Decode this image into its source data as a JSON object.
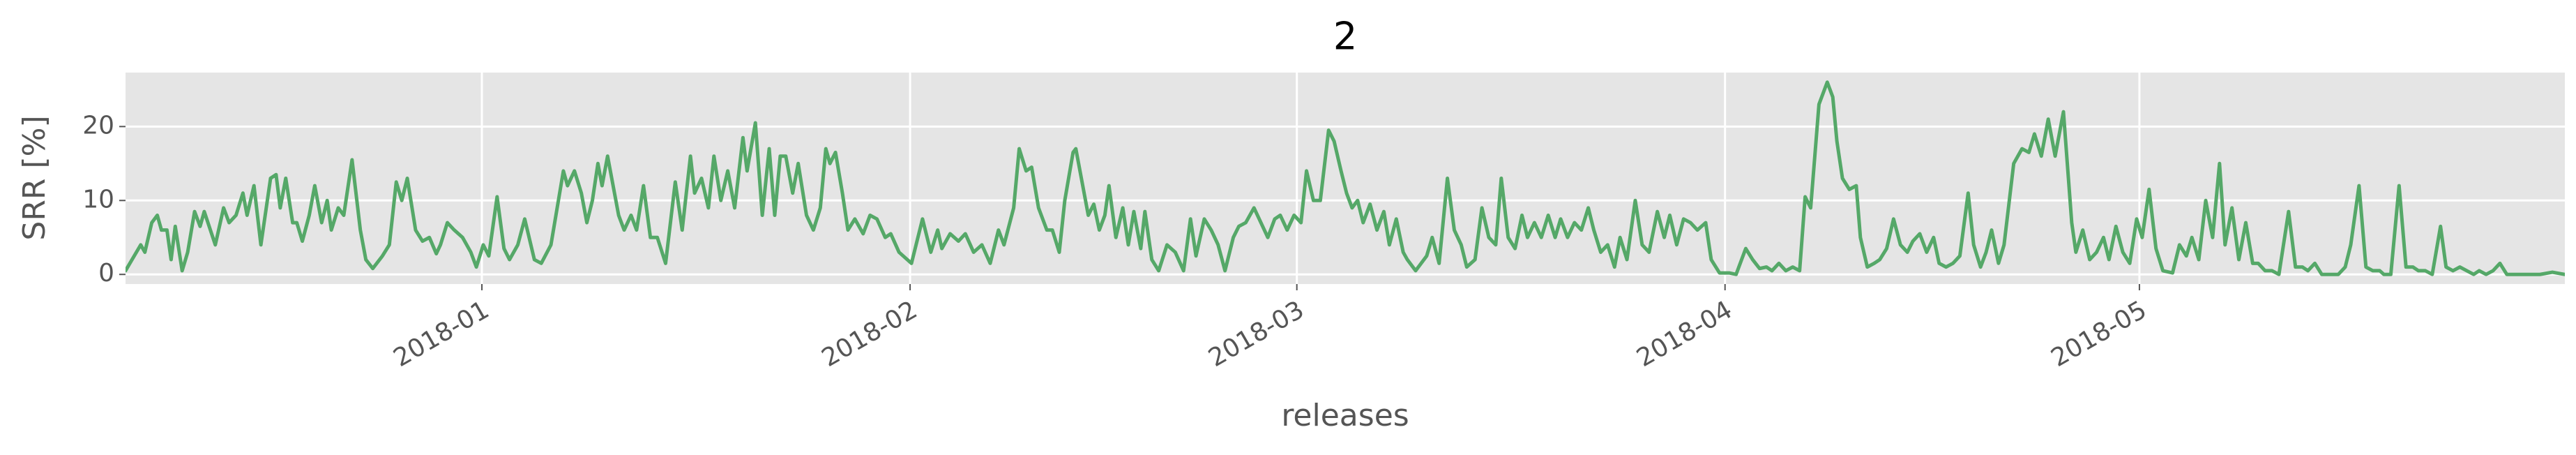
{
  "chart_data": {
    "type": "line",
    "title": "2",
    "x_label": "releases",
    "y_label": "SRR [%]",
    "xlim": [
      17506.2,
      17682.8
    ],
    "ylim": [
      -1.3,
      27.3
    ],
    "xticks": [
      {
        "value": 17532,
        "label": "2018-01"
      },
      {
        "value": 17563,
        "label": "2018-02"
      },
      {
        "value": 17591,
        "label": "2018-03"
      },
      {
        "value": 17622,
        "label": "2018-04"
      },
      {
        "value": 17652,
        "label": "2018-05"
      }
    ],
    "yticks": [
      0,
      10,
      20
    ],
    "grid": true,
    "series": [
      {
        "color": "#55a868",
        "x": [
          17506.2,
          17507.3,
          17507.6,
          17508.1,
          17508.5,
          17508.8,
          17509.2,
          17509.5,
          17509.8,
          17510.3,
          17510.7,
          17511.2,
          17511.6,
          17511.9,
          17512.7,
          17513.3,
          17513.7,
          17514.2,
          17514.7,
          17515.0,
          17515.5,
          17516.0,
          17516.7,
          17517.1,
          17517.4,
          17517.8,
          17518.3,
          17518.6,
          17519.0,
          17519.5,
          17519.9,
          17520.4,
          17520.8,
          17521.1,
          17521.6,
          17522.0,
          17522.6,
          17523.2,
          17523.6,
          17524.1,
          17524.8,
          17525.3,
          17525.8,
          17526.2,
          17526.6,
          17527.2,
          17527.7,
          17528.2,
          17528.7,
          17529.0,
          17529.5,
          17530.0,
          17530.6,
          17531.2,
          17531.6,
          17532.1,
          17532.5,
          17533.1,
          17533.6,
          17534.0,
          17534.6,
          17535.1,
          17535.8,
          17536.3,
          17537.0,
          17537.9,
          17538.2,
          17538.7,
          17539.2,
          17539.6,
          17540.0,
          17540.4,
          17540.7,
          17541.1,
          17541.6,
          17541.9,
          17542.3,
          17542.8,
          17543.2,
          17543.7,
          17544.2,
          17544.7,
          17545.3,
          17546.0,
          17546.5,
          17547.1,
          17547.4,
          17547.9,
          17548.4,
          17548.8,
          17549.3,
          17549.8,
          17550.3,
          17550.9,
          17551.2,
          17551.8,
          17552.3,
          17552.8,
          17553.2,
          17553.6,
          17554.0,
          17554.5,
          17554.9,
          17555.5,
          17556.0,
          17556.5,
          17556.9,
          17557.2,
          17557.6,
          17558.1,
          17558.5,
          17559.0,
          17559.6,
          17560.1,
          17560.6,
          17561.2,
          17561.6,
          17562.2,
          17563.1,
          17563.9,
          17564.5,
          17565.0,
          17565.3,
          17565.9,
          17566.5,
          17567.0,
          17567.6,
          17568.2,
          17568.8,
          17569.4,
          17569.8,
          17570.5,
          17570.9,
          17571.4,
          17571.8,
          17572.3,
          17572.9,
          17573.3,
          17573.8,
          17574.2,
          17574.8,
          17575.0,
          17575.5,
          17575.9,
          17576.3,
          17576.7,
          17577.1,
          17577.4,
          17577.9,
          17578.4,
          17578.8,
          17579.2,
          17579.7,
          17580.0,
          17580.5,
          17581.0,
          17581.6,
          17582.2,
          17582.8,
          17583.3,
          17583.7,
          17584.3,
          17584.8,
          17585.3,
          17585.8,
          17586.4,
          17586.8,
          17587.3,
          17587.9,
          17588.4,
          17588.9,
          17589.4,
          17589.8,
          17590.3,
          17590.8,
          17591.3,
          17591.7,
          17592.2,
          17592.7,
          17593.3,
          17593.7,
          17594.2,
          17594.6,
          17595.0,
          17595.4,
          17595.8,
          17596.3,
          17596.8,
          17597.3,
          17597.7,
          17598.2,
          17598.7,
          17599.0,
          17599.6,
          17600.4,
          17600.8,
          17601.3,
          17601.9,
          17602.4,
          17602.9,
          17603.3,
          17603.9,
          17604.4,
          17604.9,
          17605.4,
          17605.8,
          17606.3,
          17606.8,
          17607.3,
          17607.7,
          17608.2,
          17608.7,
          17609.2,
          17609.7,
          17610.1,
          17610.6,
          17611.1,
          17611.6,
          17612.1,
          17612.5,
          17613.0,
          17613.5,
          17614.0,
          17614.4,
          17614.9,
          17615.5,
          17616.0,
          17616.5,
          17617.1,
          17617.6,
          17618.0,
          17618.5,
          17619.0,
          17619.5,
          17620.0,
          17620.6,
          17621.0,
          17621.6,
          17622.3,
          17622.8,
          17623.5,
          17624.0,
          17624.5,
          17625.0,
          17625.4,
          17625.9,
          17626.4,
          17626.9,
          17627.4,
          17627.8,
          17628.2,
          17628.8,
          17629.4,
          17629.8,
          17630.1,
          17630.5,
          17631.0,
          17631.5,
          17631.8,
          17632.3,
          17632.8,
          17633.2,
          17633.7,
          17634.2,
          17634.7,
          17635.2,
          17635.6,
          17636.1,
          17636.6,
          17637.1,
          17637.5,
          17638.0,
          17638.5,
          17639.0,
          17639.6,
          17640.0,
          17640.5,
          17640.9,
          17641.3,
          17641.8,
          17642.2,
          17642.9,
          17643.5,
          17644.0,
          17644.4,
          17644.9,
          17645.4,
          17645.9,
          17646.5,
          17647.1,
          17647.4,
          17647.9,
          17648.4,
          17648.9,
          17649.4,
          17649.8,
          17650.3,
          17650.8,
          17651.3,
          17651.8,
          17652.2,
          17652.7,
          17653.2,
          17653.7,
          17654.4,
          17654.9,
          17655.4,
          17655.8,
          17656.3,
          17656.8,
          17657.3,
          17657.8,
          17658.2,
          17658.7,
          17659.2,
          17659.7,
          17660.2,
          17660.6,
          17661.1,
          17661.6,
          17662.1,
          17662.8,
          17663.3,
          17663.8,
          17664.2,
          17664.7,
          17665.2,
          17665.7,
          17666.4,
          17666.9,
          17667.3,
          17667.9,
          17668.4,
          17668.9,
          17669.4,
          17669.7,
          17670.2,
          17670.8,
          17671.3,
          17671.8,
          17672.2,
          17672.7,
          17673.2,
          17673.8,
          17674.2,
          17674.7,
          17675.2,
          17675.7,
          17676.2,
          17676.6,
          17677.1,
          17677.6,
          17678.1,
          17678.6,
          17679.3,
          17680.0,
          17681.0,
          17681.9,
          17682.8
        ],
        "values": [
          0.5,
          4,
          3,
          7,
          8,
          6,
          6,
          2,
          6.5,
          0.5,
          3,
          8.5,
          6.5,
          8.5,
          4,
          9,
          7,
          8,
          11,
          8,
          12,
          4,
          13,
          13.5,
          9,
          13,
          7,
          7,
          4.5,
          8,
          12,
          7,
          10,
          6,
          9,
          8,
          15.5,
          6,
          2,
          0.8,
          2.5,
          4,
          12.5,
          10,
          13,
          6,
          4.5,
          5,
          2.8,
          4,
          7,
          6,
          5,
          3,
          1,
          4,
          2.5,
          10.5,
          3.5,
          2,
          4,
          7.5,
          2,
          1.5,
          4,
          14,
          12,
          14,
          11,
          7,
          10,
          15,
          12,
          16,
          11,
          8,
          6,
          8,
          6,
          12,
          5,
          5,
          1.5,
          12.5,
          6,
          16,
          11,
          13,
          9,
          16,
          10,
          14,
          9,
          18.5,
          14,
          20.5,
          8,
          17,
          8,
          16,
          16,
          11,
          15,
          8,
          6,
          9,
          17,
          15,
          16.5,
          11,
          6,
          7.5,
          5.5,
          8,
          7.5,
          5,
          5.5,
          3,
          1.5,
          7.5,
          3,
          6,
          3.5,
          5.5,
          4.5,
          5.5,
          3,
          4,
          1.5,
          6,
          4,
          9,
          17,
          14,
          14.5,
          9,
          6,
          6,
          3,
          10,
          16.5,
          17,
          12,
          8,
          9.5,
          6,
          8,
          12,
          5,
          9,
          4,
          8.5,
          3.5,
          8.5,
          2,
          0.5,
          4,
          3,
          0.5,
          7.5,
          2.5,
          7.5,
          6,
          4,
          0.5,
          5,
          6.5,
          7,
          9,
          7,
          5,
          7.5,
          8,
          6,
          8,
          7,
          14,
          10,
          10,
          19.5,
          18,
          14,
          11,
          9,
          10,
          7,
          9.5,
          6,
          8.5,
          4,
          7.5,
          3,
          2,
          0.5,
          2.5,
          5,
          1.5,
          13,
          6,
          4,
          1,
          2,
          9,
          5,
          4,
          13,
          5,
          3.5,
          8,
          5,
          7,
          5,
          8,
          5,
          7.5,
          5,
          7,
          6,
          9,
          6,
          3,
          4,
          1,
          5,
          2,
          10,
          4,
          3,
          8.5,
          5,
          8,
          4,
          7.5,
          7,
          6,
          7,
          2,
          0.2,
          0.2,
          0,
          3.5,
          2,
          0.8,
          1,
          0.5,
          1.5,
          0.5,
          1,
          0.5,
          10.5,
          9,
          23,
          26,
          24,
          18,
          13,
          11.5,
          12,
          5,
          1,
          1.5,
          2,
          3.5,
          7.5,
          4,
          3,
          4.5,
          5.5,
          3,
          5,
          1.5,
          1,
          1.5,
          2.5,
          11,
          4,
          1,
          3,
          6,
          1.5,
          4,
          15,
          17,
          16.5,
          19,
          16,
          21,
          16,
          22,
          7,
          3,
          6,
          2,
          3,
          5,
          2,
          6.5,
          3,
          1.5,
          7.5,
          5,
          11.5,
          3.5,
          0.5,
          0.2,
          4,
          2.5,
          5,
          2,
          10,
          5,
          15,
          4,
          9,
          2,
          7,
          1.5,
          1.5,
          0.5,
          0.5,
          0,
          8.5,
          1,
          1,
          0.5,
          1.5,
          0,
          0,
          0,
          1,
          4,
          12,
          1,
          0.5,
          0.5,
          0,
          0,
          12,
          1,
          1,
          0.5,
          0.5,
          0,
          6.5,
          1,
          0.5,
          1,
          0.5,
          0,
          0.5,
          0,
          0.5,
          1.5,
          0,
          0,
          0,
          0,
          0.3,
          0
        ]
      }
    ]
  }
}
